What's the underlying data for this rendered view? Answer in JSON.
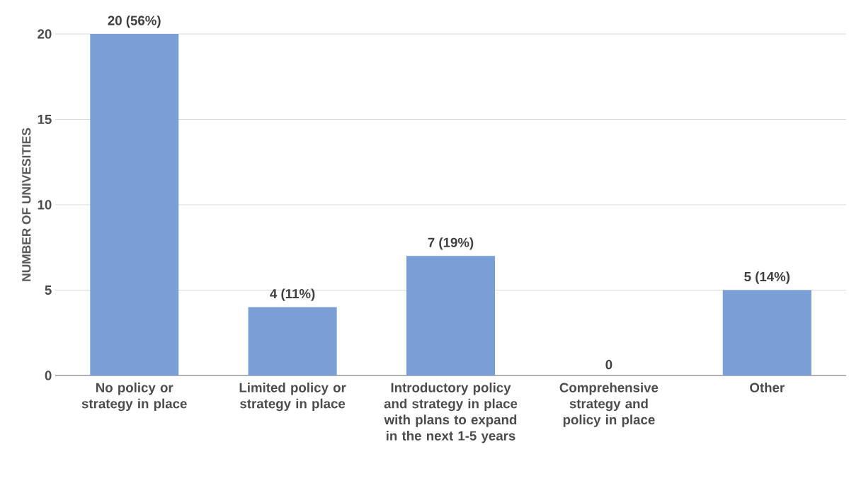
{
  "chart_data": {
    "type": "bar",
    "ylabel": "NUMBER OF UNIVESITIES",
    "categories": [
      "No policy or strategy in place",
      "Limited policy or strategy in place",
      "Introductory policy and strategy in place with plans to expand in the next 1-5 years",
      "Comprehensive strategy and policy in place",
      "Other"
    ],
    "values": [
      20,
      4,
      7,
      0,
      5
    ],
    "value_labels": [
      "20 (56%)",
      "4 (11%)",
      "7 (19%)",
      "0",
      "5 (14%)"
    ],
    "color": "#7a9fd6",
    "ylim": [
      0,
      20
    ],
    "yticks": [
      0,
      5,
      10,
      15,
      20
    ],
    "grid": "y"
  }
}
